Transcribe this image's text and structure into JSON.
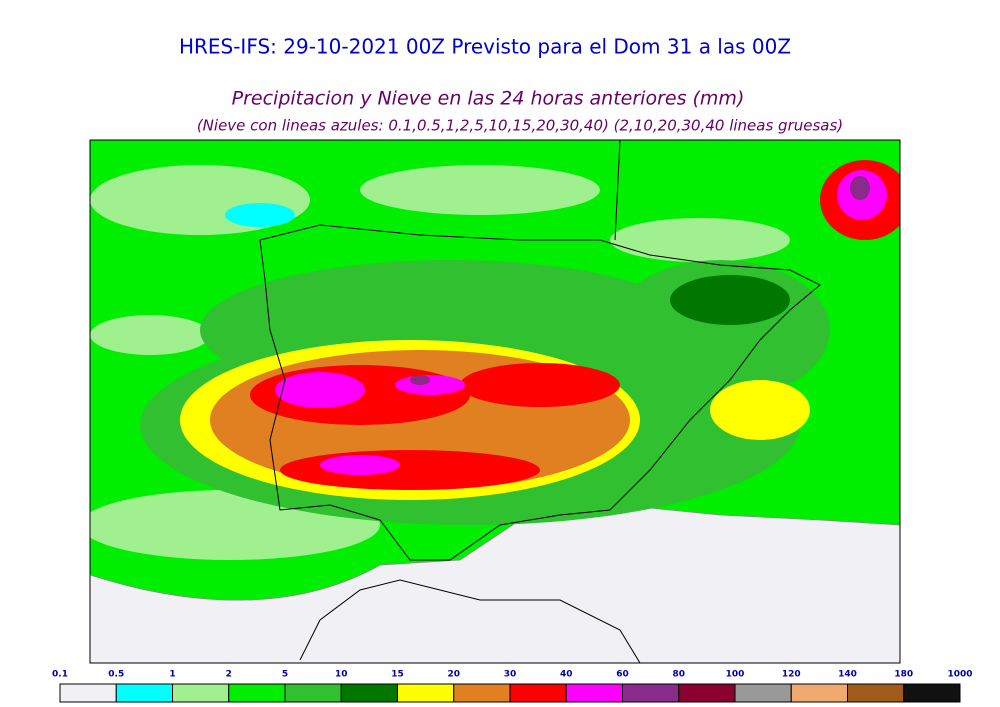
{
  "header": {
    "title": "HRES-IFS: 29-10-2021 00Z Previsto para el Dom 31 a las 00Z",
    "subtitle": "Precipitacion y Nieve en las 24 horas anteriores (mm)",
    "note": "(Nieve con lineas azules: 0.1,0.5,1,2,5,10,15,20,30,40)  (2,10,20,30,40 lineas gruesas)"
  },
  "colorbar": {
    "levels": [
      0.1,
      0.5,
      1,
      2,
      5,
      10,
      15,
      20,
      30,
      40,
      60,
      80,
      100,
      120,
      140,
      180,
      1000
    ],
    "colors": [
      "#f0f0f5",
      "#00ffff",
      "#a0f090",
      "#00ee00",
      "#30c030",
      "#007800",
      "#ffff00",
      "#e08020",
      "#ff0000",
      "#ff00ff",
      "#8a2a8a",
      "#8b0030",
      "#999999",
      "#f0aa70",
      "#a05a1a",
      "#111111"
    ]
  }
}
